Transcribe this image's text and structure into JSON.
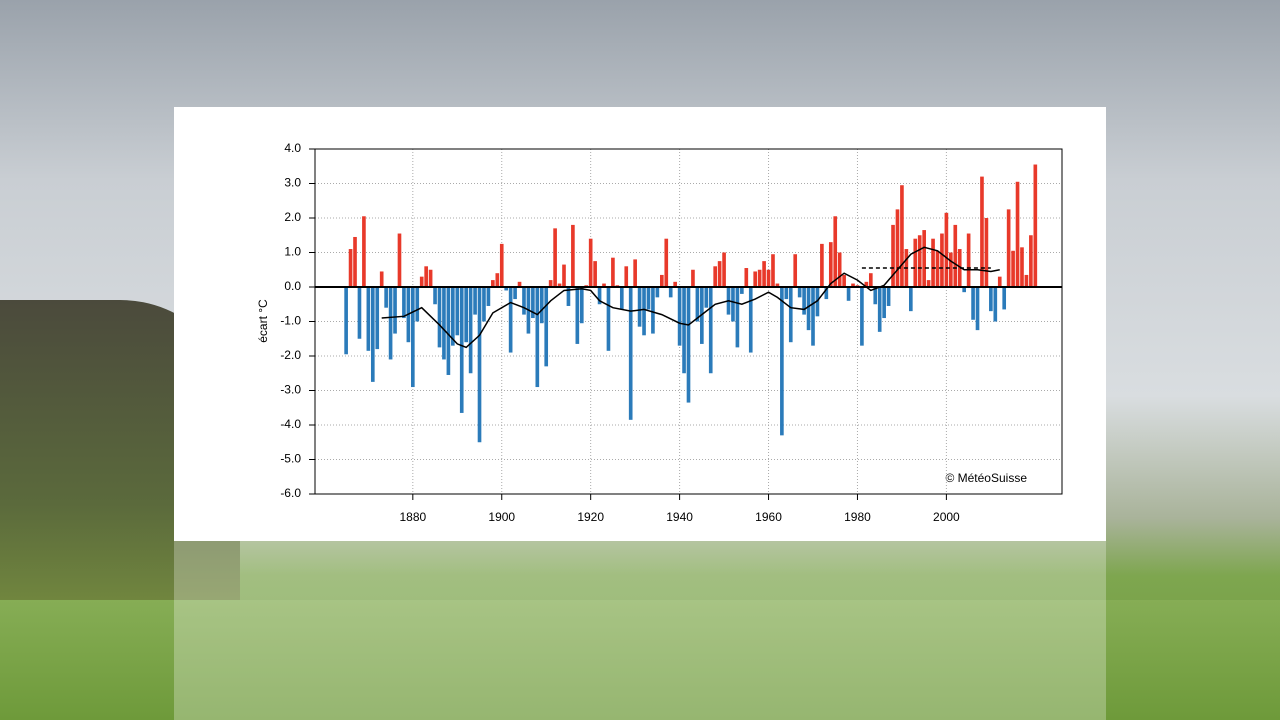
{
  "chart_data": {
    "type": "bar",
    "y_label": "écart °C",
    "annotation": "© MétéoSuisse",
    "positive_color": "#e8392a",
    "negative_color": "#2b7bba",
    "x": [
      1865,
      1866,
      1867,
      1868,
      1869,
      1870,
      1871,
      1872,
      1873,
      1874,
      1875,
      1876,
      1877,
      1878,
      1879,
      1880,
      1881,
      1882,
      1883,
      1884,
      1885,
      1886,
      1887,
      1888,
      1889,
      1890,
      1891,
      1892,
      1893,
      1894,
      1895,
      1896,
      1897,
      1898,
      1899,
      1900,
      1901,
      1902,
      1903,
      1904,
      1905,
      1906,
      1907,
      1908,
      1909,
      1910,
      1911,
      1912,
      1913,
      1914,
      1915,
      1916,
      1917,
      1918,
      1919,
      1920,
      1921,
      1922,
      1923,
      1924,
      1925,
      1926,
      1927,
      1928,
      1929,
      1930,
      1931,
      1932,
      1933,
      1934,
      1935,
      1936,
      1937,
      1938,
      1939,
      1940,
      1941,
      1942,
      1943,
      1944,
      1945,
      1946,
      1947,
      1948,
      1949,
      1950,
      1951,
      1952,
      1953,
      1954,
      1955,
      1956,
      1957,
      1958,
      1959,
      1960,
      1961,
      1962,
      1963,
      1964,
      1965,
      1966,
      1967,
      1968,
      1969,
      1970,
      1971,
      1972,
      1973,
      1974,
      1975,
      1976,
      1977,
      1978,
      1979,
      1980,
      1981,
      1982,
      1983,
      1984,
      1985,
      1986,
      1987,
      1988,
      1989,
      1990,
      1991,
      1992,
      1993,
      1994,
      1995,
      1996,
      1997,
      1998,
      1999,
      2000,
      2001,
      2002,
      2003,
      2004,
      2005,
      2006,
      2007,
      2008,
      2009,
      2010,
      2011,
      2012,
      2013,
      2014,
      2015,
      2016,
      2017,
      2018,
      2019,
      2020
    ],
    "values": [
      -1.95,
      1.1,
      1.45,
      -1.5,
      2.05,
      -1.85,
      -2.75,
      -1.8,
      0.45,
      -0.6,
      -2.1,
      -1.35,
      1.55,
      -0.9,
      -1.6,
      -2.9,
      -1.0,
      0.3,
      0.6,
      0.5,
      -0.5,
      -1.75,
      -2.1,
      -2.55,
      -1.7,
      -1.4,
      -3.65,
      -1.6,
      -2.5,
      -0.8,
      -4.5,
      -1.0,
      -0.55,
      0.2,
      0.4,
      1.25,
      -0.1,
      -1.9,
      -0.35,
      0.15,
      -0.8,
      -1.35,
      -0.9,
      -2.9,
      -1.05,
      -2.3,
      0.2,
      1.7,
      0.1,
      0.65,
      -0.55,
      1.8,
      -1.65,
      -1.05,
      0.05,
      1.4,
      0.75,
      -0.5,
      0.1,
      -1.85,
      0.85,
      0.05,
      -0.65,
      0.6,
      -3.85,
      0.8,
      -1.15,
      -1.4,
      -0.65,
      -1.35,
      -0.3,
      0.35,
      1.4,
      -0.3,
      0.15,
      -1.7,
      -2.5,
      -3.35,
      0.5,
      -1.0,
      -1.65,
      -0.6,
      -2.5,
      0.6,
      0.75,
      1.0,
      -0.8,
      -1.0,
      -1.75,
      -0.2,
      0.55,
      -1.9,
      0.45,
      0.5,
      0.75,
      0.5,
      0.95,
      0.1,
      -4.3,
      -0.35,
      -1.6,
      0.95,
      -0.3,
      -0.8,
      -1.25,
      -1.7,
      -0.85,
      1.25,
      -0.35,
      1.3,
      2.05,
      1.0,
      0.35,
      -0.4,
      0.1,
      0.05,
      -1.7,
      0.15,
      0.4,
      -0.5,
      -1.3,
      -0.9,
      -0.55,
      1.8,
      2.25,
      2.95,
      1.1,
      -0.7,
      1.4,
      1.5,
      1.65,
      0.2,
      1.4,
      1.05,
      1.55,
      2.15,
      1.0,
      1.8,
      1.1,
      -0.15,
      1.55,
      -0.95,
      -1.25,
      3.2,
      2.0,
      -0.7,
      -1.0,
      0.3,
      -0.65,
      2.25,
      1.05,
      3.05,
      1.15,
      0.35,
      1.5,
      3.55
    ],
    "smooth": {
      "color": "#000000",
      "x": [
        1873,
        1878,
        1882,
        1886,
        1890,
        1892,
        1895,
        1898,
        1902,
        1905,
        1908,
        1911,
        1914,
        1918,
        1920,
        1922,
        1925,
        1929,
        1932,
        1936,
        1940,
        1942,
        1945,
        1948,
        1951,
        1954,
        1957,
        1960,
        1962,
        1965,
        1968,
        1971,
        1974,
        1977,
        1980,
        1983,
        1986,
        1989,
        1992,
        1995,
        1998,
        2001,
        2004,
        2007,
        2010,
        2012
      ],
      "values": [
        -0.9,
        -0.85,
        -0.6,
        -1.1,
        -1.65,
        -1.75,
        -1.4,
        -0.75,
        -0.45,
        -0.6,
        -0.8,
        -0.4,
        -0.1,
        -0.05,
        -0.1,
        -0.4,
        -0.6,
        -0.7,
        -0.65,
        -0.8,
        -1.05,
        -1.1,
        -0.8,
        -0.5,
        -0.4,
        -0.5,
        -0.35,
        -0.15,
        -0.3,
        -0.6,
        -0.65,
        -0.4,
        0.1,
        0.4,
        0.2,
        -0.1,
        0.05,
        0.5,
        0.95,
        1.15,
        1.05,
        0.75,
        0.5,
        0.5,
        0.45,
        0.5
      ]
    },
    "norm": {
      "color": "#000000",
      "x": [
        1981,
        2010
      ],
      "values": [
        0.55,
        0.55
      ]
    },
    "xlim": [
      1858,
      2026
    ],
    "xticks": [
      1880,
      1900,
      1920,
      1940,
      1960,
      1980,
      2000
    ],
    "ylim": [
      -6,
      4
    ],
    "yticks": [
      {
        "value": 4,
        "label": "4.0"
      },
      {
        "value": 3,
        "label": "3.0"
      },
      {
        "value": 2,
        "label": "2.0"
      },
      {
        "value": 1,
        "label": "1.0"
      },
      {
        "value": 0,
        "label": "0.0"
      },
      {
        "value": -1,
        "label": "-1.0"
      },
      {
        "value": -2,
        "label": "-2.0"
      },
      {
        "value": -3,
        "label": "-3.0"
      },
      {
        "value": -4,
        "label": "-4.0"
      },
      {
        "value": -5,
        "label": "-5.0"
      },
      {
        "value": -6,
        "label": "-6.0"
      }
    ],
    "grid": true
  }
}
